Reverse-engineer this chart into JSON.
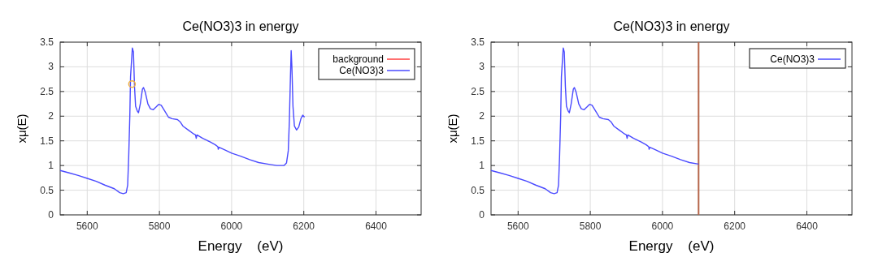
{
  "chart_data": [
    {
      "type": "line",
      "title": "Ce(NO3)3 in energy",
      "xlabel": "Energy    (eV)",
      "ylabel": "xμ(E)",
      "xlim": [
        5525,
        6525
      ],
      "xticks": [
        5600,
        5800,
        6000,
        6200,
        6400
      ],
      "ylim": [
        0,
        3.5
      ],
      "yticks": [
        0,
        0.5,
        1,
        1.5,
        2,
        2.5,
        3,
        3.5
      ],
      "grid": true,
      "legend": "top right",
      "series": [
        {
          "name": "background",
          "color": "#ff4040"
        },
        {
          "name": "Ce(NO3)3",
          "color": "#4a4aff",
          "x": [
            5525,
            5550,
            5575,
            5600,
            5625,
            5650,
            5675,
            5690,
            5700,
            5708,
            5712,
            5715,
            5718,
            5720,
            5725,
            5728,
            5731,
            5734,
            5739,
            5742,
            5747,
            5753,
            5756,
            5761,
            5768,
            5775,
            5783,
            5790,
            5798,
            5805,
            5815,
            5825,
            5835,
            5850,
            5858,
            5865,
            5880,
            5895,
            5900,
            5902,
            5904,
            5920,
            5940,
            5955,
            5962,
            5963,
            5965,
            5980,
            6000,
            6025,
            6050,
            6075,
            6100,
            6125,
            6145,
            6152,
            6157,
            6160,
            6163,
            6165,
            6167,
            6170,
            6174,
            6180,
            6186,
            6192,
            6197,
            6202
          ],
          "values": [
            0.9,
            0.85,
            0.8,
            0.74,
            0.68,
            0.6,
            0.53,
            0.45,
            0.43,
            0.45,
            0.6,
            1.2,
            2.0,
            2.8,
            3.38,
            3.3,
            2.6,
            2.2,
            2.1,
            2.07,
            2.25,
            2.55,
            2.58,
            2.48,
            2.25,
            2.15,
            2.13,
            2.18,
            2.24,
            2.22,
            2.1,
            1.98,
            1.95,
            1.93,
            1.88,
            1.8,
            1.72,
            1.64,
            1.62,
            1.55,
            1.62,
            1.55,
            1.48,
            1.42,
            1.38,
            1.33,
            1.37,
            1.32,
            1.25,
            1.19,
            1.12,
            1.06,
            1.03,
            1.0,
            1.0,
            1.05,
            1.3,
            1.9,
            2.8,
            3.33,
            3.0,
            2.2,
            1.8,
            1.72,
            1.78,
            1.95,
            2.02,
            1.98
          ]
        },
        {
          "type": "scatter",
          "color": "#f0b040",
          "marker": "circle",
          "x": [
            5724
          ],
          "values": [
            2.65
          ]
        }
      ]
    },
    {
      "type": "line",
      "title": "Ce(NO3)3 in energy",
      "xlabel": "Energy    (eV)",
      "ylabel": "xμ(E)",
      "xlim": [
        5525,
        6525
      ],
      "xticks": [
        5600,
        5800,
        6000,
        6200,
        6400
      ],
      "ylim": [
        0,
        3.5
      ],
      "yticks": [
        0,
        0.5,
        1,
        1.5,
        2,
        2.5,
        3,
        3.5
      ],
      "grid": true,
      "legend": "top right",
      "ref_lines": [
        {
          "axis": "x",
          "value": 6100,
          "color": "#b5654a"
        }
      ],
      "series": [
        {
          "name": "Ce(NO3)3",
          "color": "#4a4aff",
          "x": [
            5525,
            5550,
            5575,
            5600,
            5625,
            5650,
            5675,
            5690,
            5700,
            5708,
            5712,
            5715,
            5718,
            5720,
            5725,
            5728,
            5731,
            5734,
            5739,
            5742,
            5747,
            5753,
            5756,
            5761,
            5768,
            5775,
            5783,
            5790,
            5798,
            5805,
            5815,
            5825,
            5835,
            5850,
            5858,
            5865,
            5880,
            5895,
            5900,
            5902,
            5904,
            5920,
            5940,
            5955,
            5962,
            5963,
            5965,
            5980,
            6000,
            6025,
            6050,
            6075,
            6100
          ],
          "values": [
            0.9,
            0.85,
            0.8,
            0.74,
            0.68,
            0.6,
            0.53,
            0.45,
            0.43,
            0.45,
            0.6,
            1.2,
            2.0,
            2.8,
            3.38,
            3.3,
            2.6,
            2.2,
            2.1,
            2.07,
            2.25,
            2.55,
            2.58,
            2.48,
            2.25,
            2.15,
            2.13,
            2.18,
            2.24,
            2.22,
            2.1,
            1.98,
            1.95,
            1.93,
            1.88,
            1.8,
            1.72,
            1.64,
            1.62,
            1.55,
            1.62,
            1.55,
            1.48,
            1.42,
            1.38,
            1.33,
            1.37,
            1.32,
            1.25,
            1.19,
            1.12,
            1.06,
            1.03
          ]
        }
      ]
    }
  ]
}
